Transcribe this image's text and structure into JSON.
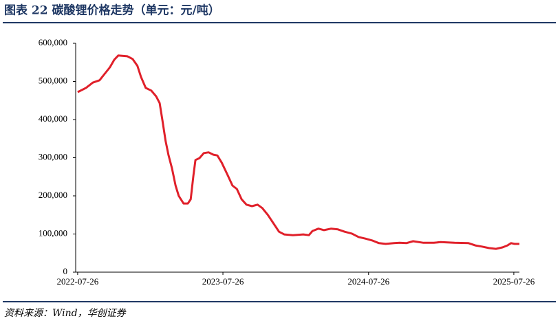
{
  "chart_data": {
    "type": "line",
    "title": "图表 22   碳酸锂价格走势（单元：元/吨）",
    "source": "资料来源：Wind，华创证券",
    "x": [
      "2022-07-26",
      "2022-08-16",
      "2022-09-02",
      "2022-09-19",
      "2022-10-01",
      "2022-10-15",
      "2022-10-26",
      "2022-11-05",
      "2022-11-28",
      "2022-12-11",
      "2022-12-23",
      "2023-01-01",
      "2023-01-13",
      "2023-01-27",
      "2023-02-08",
      "2023-02-17",
      "2023-02-24",
      "2023-03-04",
      "2023-03-11",
      "2023-03-20",
      "2023-03-29",
      "2023-04-06",
      "2023-04-18",
      "2023-04-29",
      "2023-05-06",
      "2023-05-13",
      "2023-05-18",
      "2023-05-28",
      "2023-06-08",
      "2023-06-20",
      "2023-07-02",
      "2023-07-12",
      "2023-07-23",
      "2023-08-07",
      "2023-08-19",
      "2023-08-30",
      "2023-09-11",
      "2023-09-23",
      "2023-10-07",
      "2023-10-21",
      "2023-11-02",
      "2023-11-16",
      "2023-11-30",
      "2023-12-14",
      "2023-12-27",
      "2024-01-18",
      "2024-02-13",
      "2024-02-27",
      "2024-03-07",
      "2024-03-22",
      "2024-04-05",
      "2024-04-23",
      "2024-05-10",
      "2024-05-27",
      "2024-06-14",
      "2024-07-01",
      "2024-07-18",
      "2024-08-04",
      "2024-08-21",
      "2024-09-07",
      "2024-09-28",
      "2024-10-12",
      "2024-10-29",
      "2024-11-15",
      "2024-12-11",
      "2025-01-06",
      "2025-01-23",
      "2025-02-27",
      "2025-04-03",
      "2025-04-20",
      "2025-05-07",
      "2025-05-25",
      "2025-06-11",
      "2025-06-28",
      "2025-07-10",
      "2025-07-19",
      "2025-07-28",
      "2025-08-09"
    ],
    "series": [
      {
        "name": "碳酸锂",
        "color": "#e0202a",
        "values": [
          472000,
          483000,
          497000,
          503000,
          519000,
          537000,
          557000,
          568000,
          566000,
          559000,
          541000,
          512000,
          483000,
          476000,
          461000,
          443000,
          398000,
          344000,
          308000,
          272000,
          227000,
          200000,
          180000,
          180000,
          191000,
          254000,
          294000,
          299000,
          312000,
          314000,
          308000,
          306000,
          287000,
          254000,
          227000,
          218000,
          191000,
          177000,
          173000,
          177000,
          168000,
          150000,
          128000,
          106000,
          99000,
          97000,
          99000,
          97000,
          108000,
          114000,
          110000,
          114000,
          112000,
          106000,
          101000,
          92000,
          88000,
          83000,
          76000,
          74000,
          76000,
          77000,
          76000,
          81000,
          77000,
          77000,
          79000,
          77000,
          76000,
          70000,
          67000,
          63000,
          61000,
          65000,
          70000,
          76000,
          74000,
          74000
        ]
      }
    ],
    "xlim": [
      "2022-07-21",
      "2025-08-09"
    ],
    "xticks": [
      "2022-07-26",
      "2023-07-26",
      "2024-07-26",
      "2025-07-26"
    ],
    "ylim": [
      0,
      600000
    ],
    "yticks": [
      0,
      {
        "value": 100000,
        "label": "100,000"
      },
      {
        "value": 200000,
        "label": "200,000"
      },
      {
        "value": 300000,
        "label": "300,000"
      },
      {
        "value": 400000,
        "label": "400,000"
      },
      {
        "value": 500000,
        "label": "500,000"
      },
      {
        "value": 600000,
        "label": "600,000"
      }
    ]
  }
}
